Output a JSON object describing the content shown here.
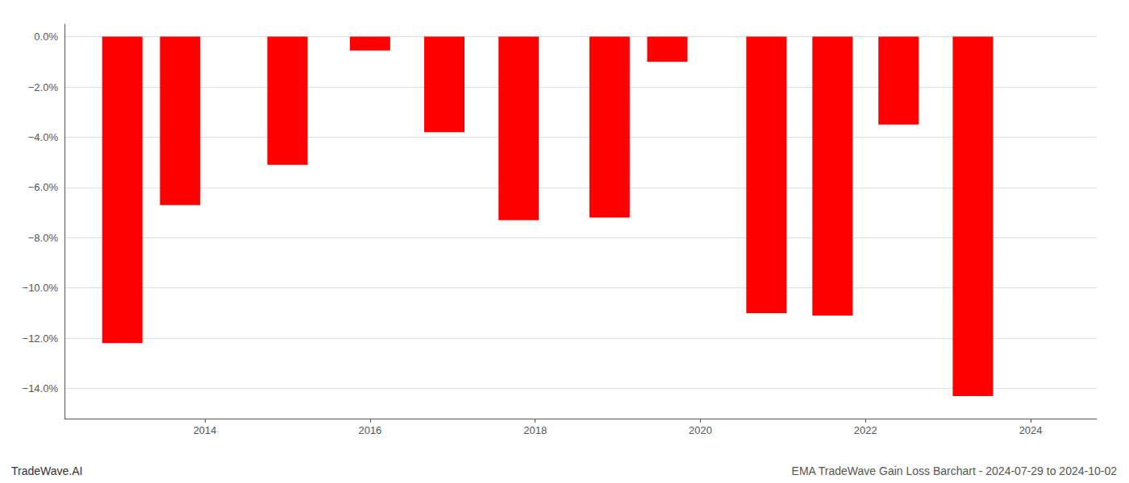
{
  "chart_data": {
    "type": "bar",
    "x": [
      2013.0,
      2013.7,
      2015.0,
      2016.0,
      2016.9,
      2017.8,
      2018.9,
      2019.6,
      2020.8,
      2021.6,
      2022.4,
      2023.3
    ],
    "values": [
      -12.2,
      -6.7,
      -5.1,
      -0.55,
      -3.8,
      -7.3,
      -7.2,
      -1.0,
      -11.0,
      -11.1,
      -3.5,
      -14.3
    ],
    "color": "#ff0000",
    "xlim": [
      2012.3,
      2024.8
    ],
    "xticks": [
      2014,
      2016,
      2018,
      2020,
      2022,
      2024
    ],
    "ylim": [
      -15.2,
      0.5
    ],
    "yticks": [
      {
        "value": 0.0,
        "label": "0.0%"
      },
      {
        "value": -2.0,
        "label": "−2.0%"
      },
      {
        "value": -4.0,
        "label": "−4.0%"
      },
      {
        "value": -6.0,
        "label": "−6.0%"
      },
      {
        "value": -8.0,
        "label": "−8.0%"
      },
      {
        "value": -10.0,
        "label": "−10.0%"
      },
      {
        "value": -12.0,
        "label": "−12.0%"
      },
      {
        "value": -14.0,
        "label": "−14.0%"
      }
    ],
    "grid": true,
    "annotations": [
      "TradeWave.AI",
      "EMA TradeWave Gain Loss Barchart - 2024-07-29 to 2024-10-02"
    ]
  }
}
